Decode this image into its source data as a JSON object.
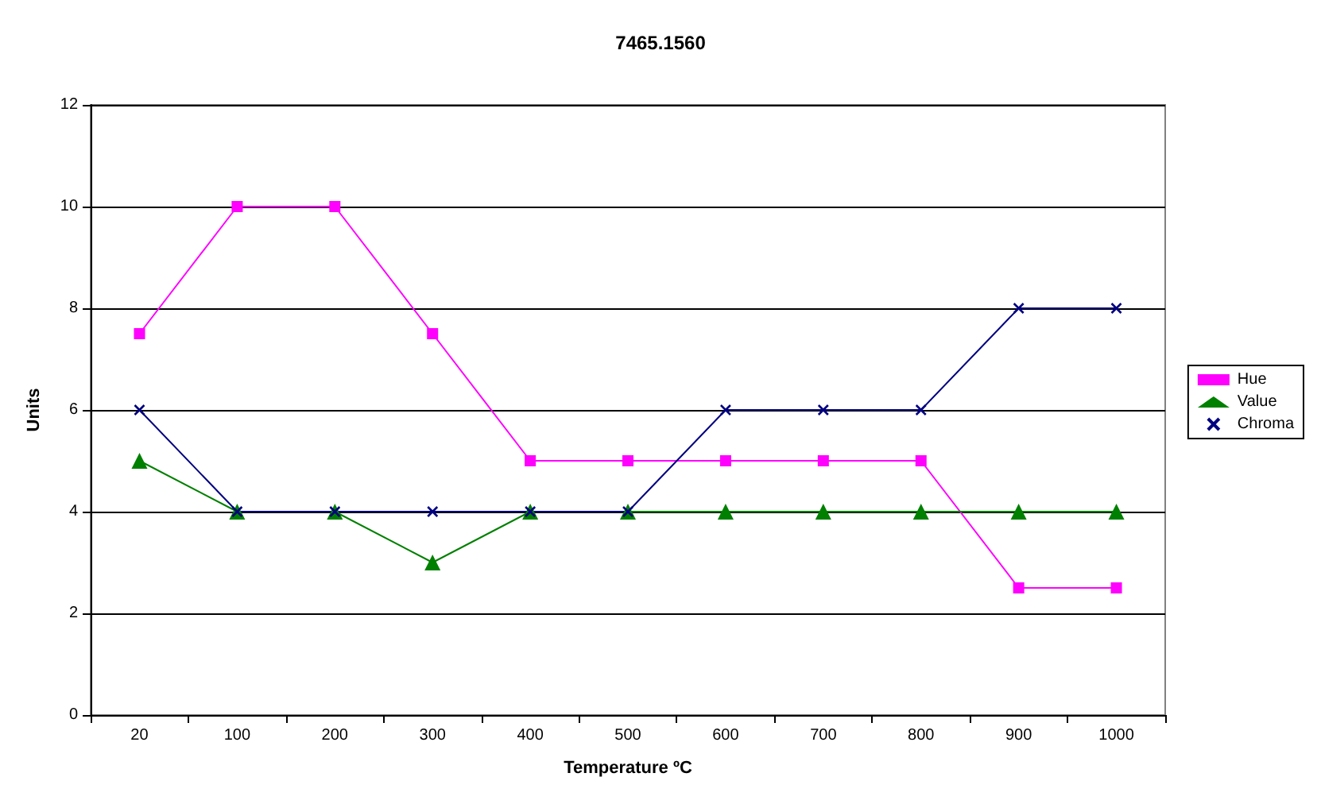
{
  "chart_data": {
    "type": "line",
    "title": "7465.1560",
    "xlabel": "Temperature ºC",
    "ylabel": "Units",
    "categories": [
      "20",
      "100",
      "200",
      "300",
      "400",
      "500",
      "600",
      "700",
      "800",
      "900",
      "1000"
    ],
    "series": [
      {
        "name": "Hue",
        "color": "#ff00ff",
        "marker": "square",
        "values": [
          7.5,
          10,
          10,
          7.5,
          5,
          5,
          5,
          5,
          5,
          2.5,
          2.5
        ]
      },
      {
        "name": "Value",
        "color": "#008000",
        "marker": "triangle",
        "values": [
          5,
          4,
          4,
          3,
          4,
          4,
          4,
          4,
          4,
          4,
          4
        ]
      },
      {
        "name": "Chroma",
        "color": "#000080",
        "marker": "cross",
        "values": [
          6,
          4,
          4,
          4,
          4,
          4,
          6,
          6,
          6,
          8,
          8
        ]
      }
    ],
    "ylim": [
      0,
      12
    ],
    "yticks": [
      0,
      2,
      4,
      6,
      8,
      10,
      12
    ],
    "grid": "y",
    "legend": "right"
  }
}
